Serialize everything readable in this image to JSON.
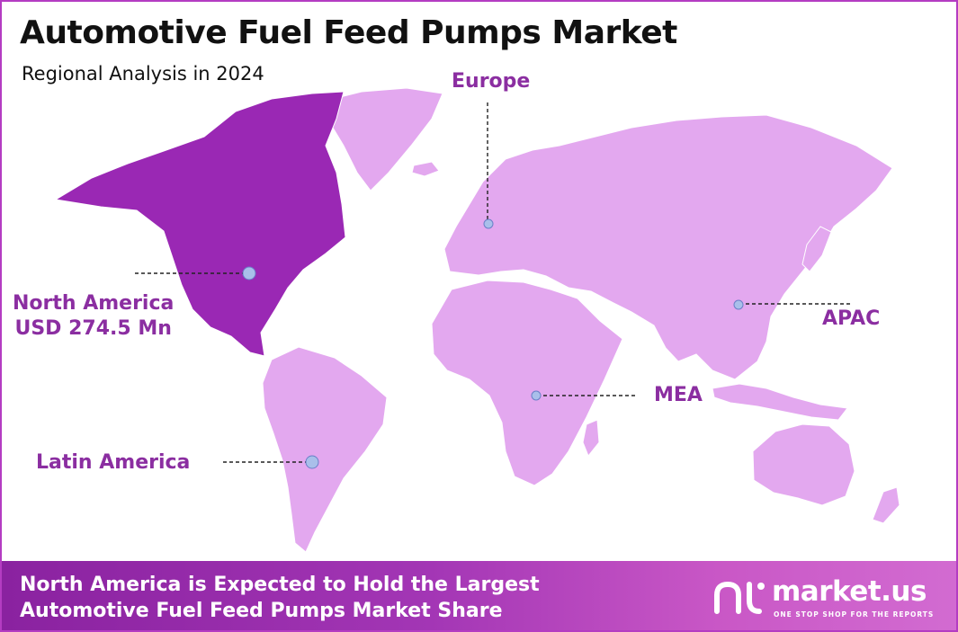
{
  "header": {
    "title": "Automotive Fuel Feed Pumps Market",
    "subtitle": "Regional Analysis in 2024"
  },
  "map": {
    "highlight_color": "#9a28b4",
    "land_color": "#e3a8ef",
    "marker_color": "#a9bfea",
    "highlighted_region": "North America",
    "regions": {
      "north_america": {
        "name": "North America",
        "value": "USD 274.5 Mn"
      },
      "europe": {
        "name": "Europe"
      },
      "apac": {
        "name": "APAC"
      },
      "mea": {
        "name": "MEA"
      },
      "latin_america": {
        "name": "Latin America"
      }
    }
  },
  "footer": {
    "line1": "North America is Expected to Hold the Largest",
    "line2": "Automotive Fuel Feed Pumps Market Share",
    "brand_name": "market.us",
    "brand_tagline": "ONE STOP SHOP FOR THE REPORTS"
  }
}
